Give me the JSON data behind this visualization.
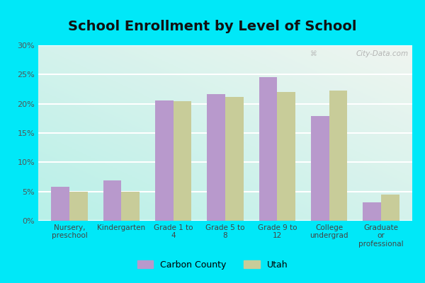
{
  "title": "School Enrollment by Level of School",
  "categories": [
    "Nursery,\npreschool",
    "Kindergarten",
    "Grade 1 to\n4",
    "Grade 5 to\n8",
    "Grade 9 to\n12",
    "College\nundergrad",
    "Graduate\nor\nprofessional"
  ],
  "carbon_county": [
    5.8,
    6.9,
    20.6,
    21.7,
    24.6,
    17.9,
    3.2
  ],
  "utah": [
    5.0,
    4.9,
    20.4,
    21.2,
    22.0,
    22.3,
    4.5
  ],
  "carbon_color": "#b899cc",
  "utah_color": "#c8cc99",
  "background_top_right": "#f0f5f0",
  "background_bottom_left": "#b8f0e8",
  "outer_background": "#00e8f8",
  "ylim": [
    0,
    30
  ],
  "yticks": [
    0,
    5,
    10,
    15,
    20,
    25,
    30
  ],
  "ytick_labels": [
    "0%",
    "5%",
    "10%",
    "15%",
    "20%",
    "25%",
    "30%"
  ],
  "legend_labels": [
    "Carbon County",
    "Utah"
  ],
  "title_fontsize": 14,
  "bar_width": 0.35,
  "watermark": "City-Data.com"
}
